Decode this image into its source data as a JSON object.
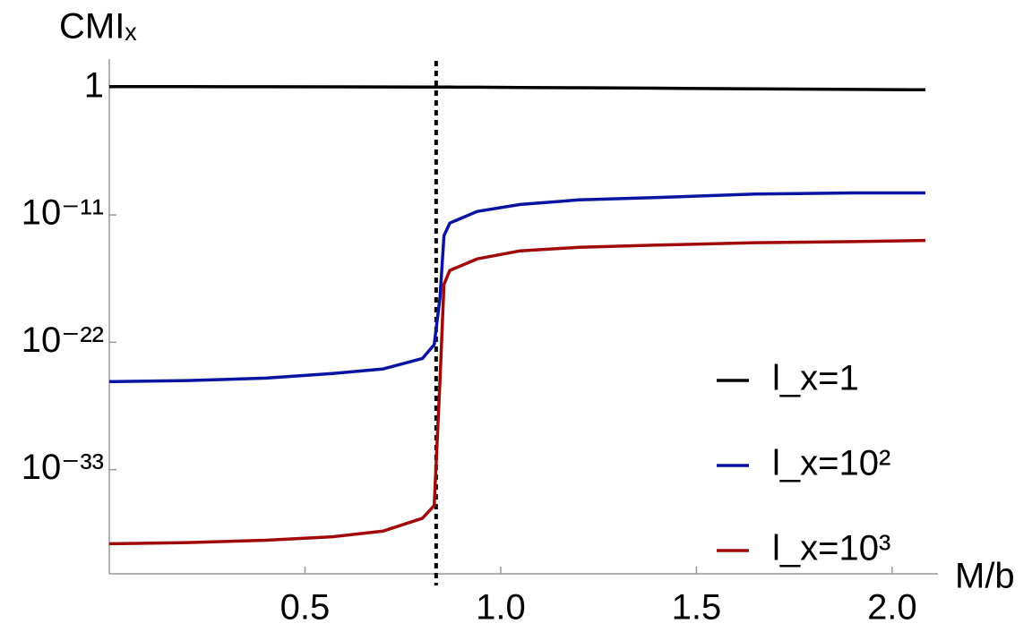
{
  "chart_data": {
    "type": "line",
    "y_label": "CMIₓ",
    "x_label": "M/b",
    "x": [
      0,
      0.2,
      0.4,
      0.57,
      0.7,
      0.8,
      0.83,
      0.845,
      0.855,
      0.87,
      0.94,
      1.05,
      1.2,
      1.4,
      1.65,
      1.9,
      2.085
    ],
    "series": [
      {
        "name": "l_x=1",
        "color": "#000000",
        "values": [
          1.2,
          1.2,
          1.18,
          1.16,
          1.15,
          1.13,
          1.12,
          1.12,
          1.11,
          1.1,
          1.08,
          1.03,
          0.98,
          0.9,
          0.78,
          0.7,
          0.65
        ]
      },
      {
        "name": "l_x=10²",
        "color": "#0a14a0",
        "values": [
          4e-26,
          5e-26,
          8e-26,
          2e-25,
          5e-25,
          4e-24,
          6.3e-23,
          8e-19,
          1.6e-13,
          2e-12,
          2e-11,
          8e-11,
          2e-10,
          3.2e-10,
          6.3e-10,
          8e-10,
          8e-10
        ]
      },
      {
        "name": "l_x=10³",
        "color": "#a00a0a",
        "values": [
          4e-40,
          5e-40,
          8e-40,
          1.6e-39,
          5e-39,
          6.3e-38,
          8e-37,
          6.3e-26,
          1e-17,
          1.6e-16,
          1.6e-15,
          8e-15,
          1.6e-14,
          2.5e-14,
          4e-14,
          5e-14,
          6.3e-14
        ]
      }
    ],
    "vline_x": 0.835,
    "xlim": [
      0,
      2.117
    ],
    "xticks": [
      0.5,
      {
        "value": 1,
        "label": "1.0"
      },
      1.5,
      {
        "value": 2,
        "label": "2.0"
      }
    ],
    "ylim": [
      1e-42,
      100
    ],
    "log_y": true,
    "yticks": [
      1,
      {
        "value": 1e-11,
        "label": "10⁻¹¹"
      },
      {
        "value": 1e-22,
        "label": "10⁻²²"
      },
      {
        "value": 1e-33,
        "label": "10⁻³³"
      }
    ],
    "legend": "lower right"
  }
}
